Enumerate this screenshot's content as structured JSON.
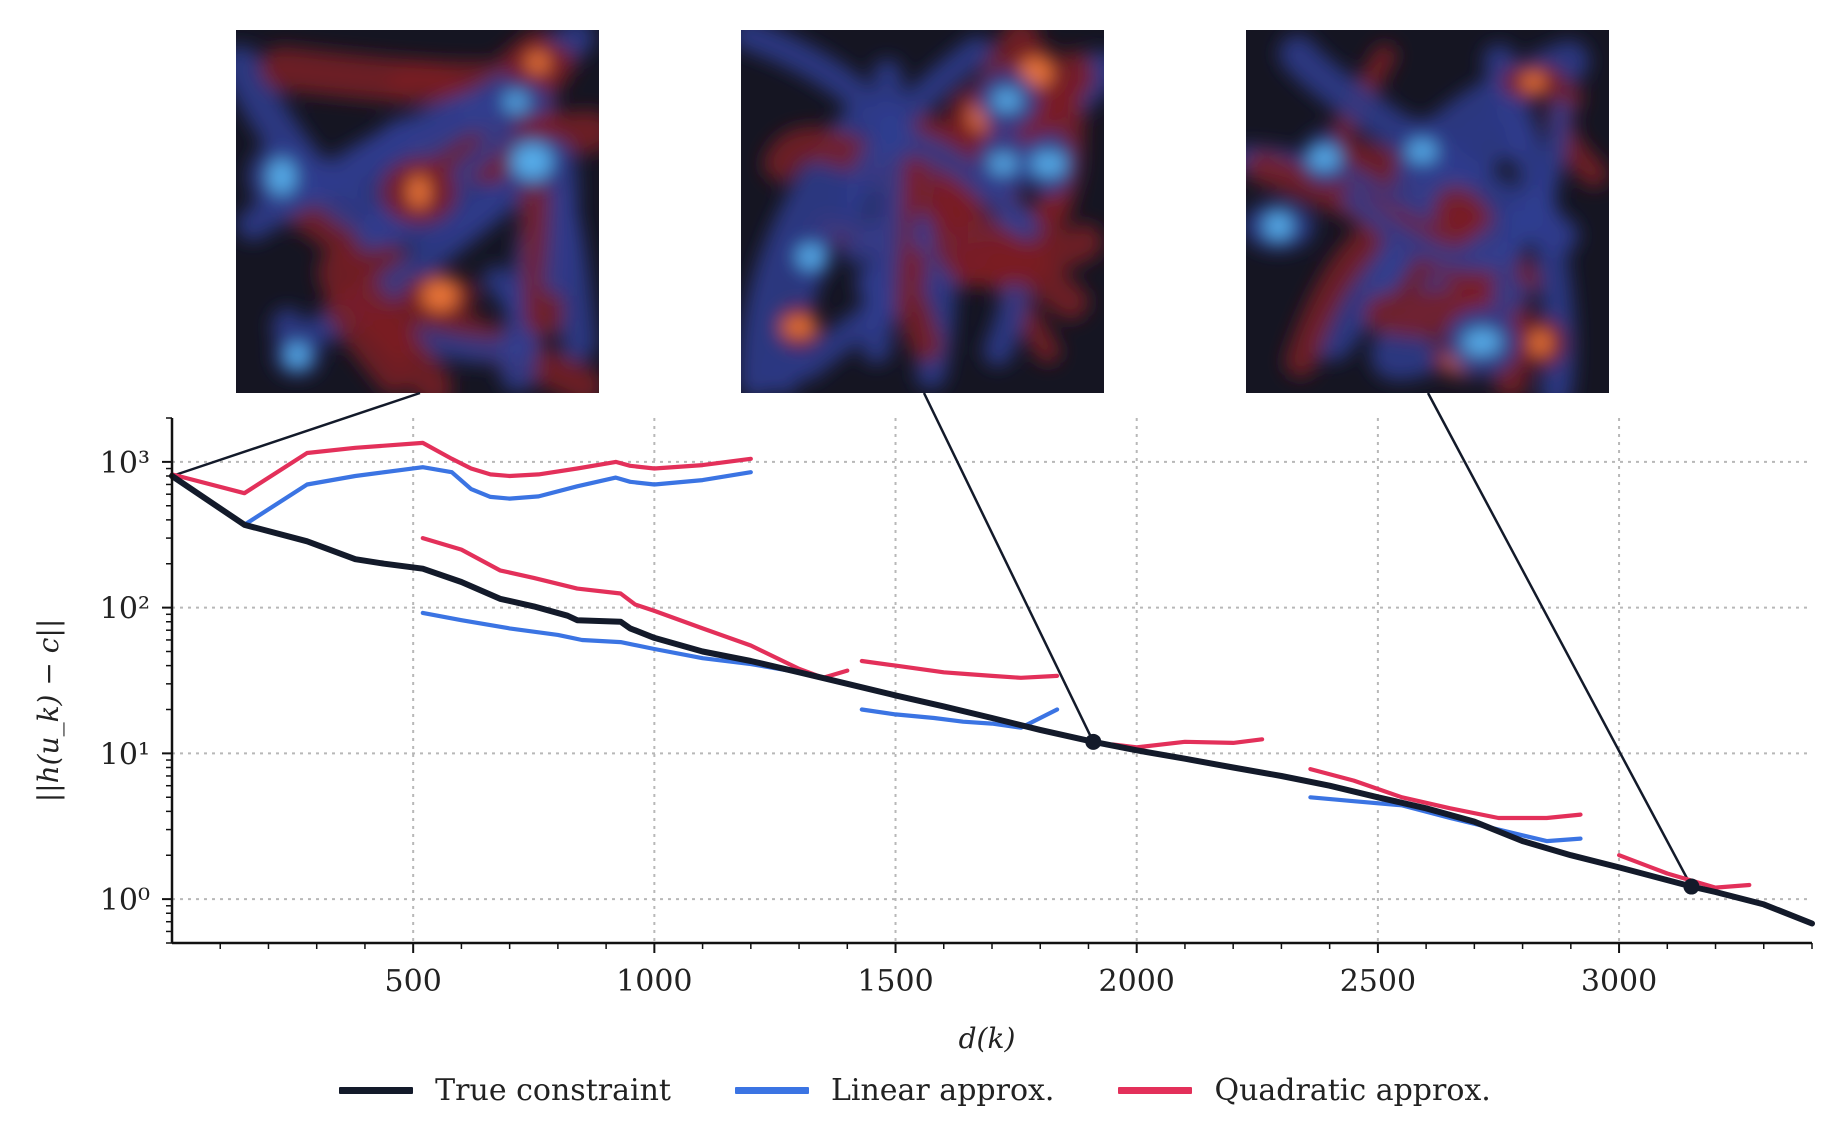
{
  "chart_data": {
    "type": "line",
    "xlabel": "d(k)",
    "ylabel": "||h(u_k) − c||",
    "yscale": "log",
    "xlim": [
      0,
      3400
    ],
    "ylim": [
      0.5,
      2000
    ],
    "xticks": [
      500,
      1000,
      1500,
      2000,
      2500,
      3000
    ],
    "xtick_labels": [
      "500",
      "1000",
      "1500",
      "2000",
      "2500",
      "3000"
    ],
    "yticks": [
      1,
      10,
      100,
      1000
    ],
    "ytick_labels": [
      "10⁰",
      "10¹",
      "10²",
      "10³"
    ],
    "grid": true,
    "legend_placement": "bottom-center",
    "series": [
      {
        "name": "True constraint",
        "color": "#131a2a",
        "segments": [
          [
            [
              0,
              800
            ],
            [
              150,
              370
            ],
            [
              280,
              285
            ],
            [
              380,
              215
            ],
            [
              440,
              200
            ],
            [
              520,
              185
            ],
            [
              600,
              150
            ],
            [
              680,
              115
            ],
            [
              750,
              102
            ],
            [
              820,
              88
            ],
            [
              840,
              82
            ],
            [
              930,
              80
            ],
            [
              950,
              72
            ],
            [
              1000,
              62
            ],
            [
              1100,
              50
            ],
            [
              1200,
              43
            ],
            [
              1300,
              36
            ],
            [
              1400,
              30
            ],
            [
              1500,
              25
            ],
            [
              1600,
              21
            ],
            [
              1700,
              17.5
            ],
            [
              1800,
              14.5
            ],
            [
              1910,
              12
            ],
            [
              2000,
              10.5
            ],
            [
              2100,
              9.2
            ],
            [
              2200,
              8.0
            ],
            [
              2300,
              7.0
            ],
            [
              2400,
              6.0
            ],
            [
              2500,
              5.0
            ],
            [
              2600,
              4.2
            ],
            [
              2700,
              3.4
            ],
            [
              2800,
              2.5
            ],
            [
              2900,
              2.0
            ],
            [
              3000,
              1.65
            ],
            [
              3100,
              1.35
            ],
            [
              3150,
              1.22
            ],
            [
              3200,
              1.12
            ],
            [
              3300,
              0.92
            ],
            [
              3400,
              0.68
            ]
          ]
        ]
      },
      {
        "name": "Linear approx.",
        "color": "#3b74e3",
        "segments": [
          [
            [
              150,
              370
            ],
            [
              280,
              700
            ],
            [
              380,
              800
            ],
            [
              520,
              920
            ],
            [
              580,
              850
            ],
            [
              620,
              650
            ],
            [
              660,
              575
            ],
            [
              700,
              560
            ],
            [
              760,
              580
            ],
            [
              840,
              680
            ],
            [
              920,
              780
            ],
            [
              950,
              730
            ],
            [
              1000,
              700
            ],
            [
              1100,
              750
            ],
            [
              1200,
              850
            ]
          ],
          [
            [
              520,
              92
            ],
            [
              600,
              82
            ],
            [
              700,
              72
            ],
            [
              800,
              65
            ],
            [
              850,
              60
            ],
            [
              930,
              58
            ],
            [
              1000,
              52
            ],
            [
              1100,
              45
            ],
            [
              1200,
              41
            ],
            [
              1300,
              36
            ]
          ],
          [
            [
              1430,
              20
            ],
            [
              1500,
              18.5
            ],
            [
              1580,
              17.5
            ],
            [
              1640,
              16.5
            ],
            [
              1700,
              16
            ],
            [
              1760,
              15
            ],
            [
              1835,
              20
            ]
          ],
          [
            [
              2360,
              5
            ],
            [
              2450,
              4.7
            ],
            [
              2550,
              4.4
            ],
            [
              2650,
              3.6
            ],
            [
              2750,
              3.0
            ],
            [
              2850,
              2.5
            ],
            [
              2920,
              2.6
            ]
          ]
        ]
      },
      {
        "name": "Quadratic approx.",
        "color": "#e3305a",
        "segments": [
          [
            [
              0,
              820
            ],
            [
              150,
              610
            ],
            [
              280,
              1150
            ],
            [
              380,
              1250
            ],
            [
              520,
              1350
            ],
            [
              580,
              1050
            ],
            [
              620,
              900
            ],
            [
              660,
              820
            ],
            [
              700,
              800
            ],
            [
              760,
              820
            ],
            [
              840,
              900
            ],
            [
              920,
              1000
            ],
            [
              950,
              940
            ],
            [
              1000,
              900
            ],
            [
              1100,
              950
            ],
            [
              1200,
              1050
            ]
          ],
          [
            [
              520,
              300
            ],
            [
              600,
              250
            ],
            [
              680,
              180
            ],
            [
              750,
              160
            ],
            [
              840,
              135
            ],
            [
              930,
              125
            ],
            [
              960,
              105
            ],
            [
              1000,
              95
            ],
            [
              1100,
              72
            ],
            [
              1200,
              55
            ],
            [
              1300,
              38
            ],
            [
              1350,
              33
            ],
            [
              1400,
              37
            ]
          ],
          [
            [
              1430,
              43
            ],
            [
              1500,
              40
            ],
            [
              1600,
              36
            ],
            [
              1650,
              35
            ],
            [
              1700,
              34
            ],
            [
              1760,
              33
            ],
            [
              1835,
              34
            ]
          ],
          [
            [
              1950,
              11.5
            ],
            [
              2000,
              11
            ],
            [
              2100,
              12
            ],
            [
              2200,
              11.8
            ],
            [
              2260,
              12.5
            ]
          ],
          [
            [
              2360,
              7.8
            ],
            [
              2450,
              6.5
            ],
            [
              2550,
              5
            ],
            [
              2650,
              4.2
            ],
            [
              2750,
              3.6
            ],
            [
              2850,
              3.6
            ],
            [
              2920,
              3.8
            ]
          ],
          [
            [
              3000,
              2.0
            ],
            [
              3100,
              1.5
            ],
            [
              3200,
              1.2
            ],
            [
              3270,
              1.25
            ]
          ]
        ]
      }
    ],
    "annotations": [
      {
        "type": "inset-image",
        "anchor": [
          0,
          800
        ],
        "colormap": "diverging-vorticity",
        "seed": 1
      },
      {
        "type": "inset-image",
        "anchor": [
          1910,
          12
        ],
        "colormap": "diverging-vorticity",
        "seed": 2
      },
      {
        "type": "inset-image",
        "anchor": [
          3150,
          1.22
        ],
        "colormap": "diverging-vorticity",
        "seed": 3
      }
    ]
  },
  "legend": {
    "items": [
      {
        "label": "True constraint",
        "color": "#131a2a"
      },
      {
        "label": "Linear approx.",
        "color": "#3b74e3"
      },
      {
        "label": "Quadratic approx.",
        "color": "#e3305a"
      }
    ]
  },
  "colors": {
    "axis": "#111111",
    "grid": "#b8b8b8",
    "inset_hot": "#f07a3a",
    "inset_warm": "#7a1c24",
    "inset_dark": "#151522",
    "inset_cool": "#2f3d8f",
    "inset_cold": "#58b4f0"
  }
}
